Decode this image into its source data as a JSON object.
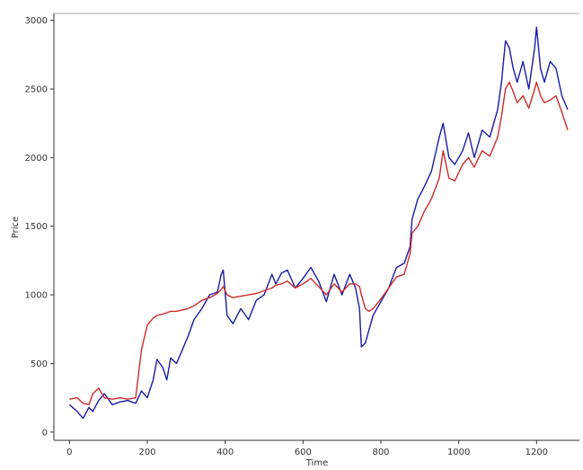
{
  "chart_data": {
    "type": "line",
    "title": "",
    "xlabel": "Time",
    "ylabel": "Price",
    "xlim": [
      -40,
      1310
    ],
    "ylim": [
      -60,
      3050
    ],
    "xticks": [
      0,
      200,
      400,
      600,
      800,
      1000,
      1200
    ],
    "yticks": [
      0,
      500,
      1000,
      1500,
      2000,
      2500,
      3000
    ],
    "grid": false,
    "legend": "none",
    "series": [
      {
        "color": "#1a1aa6",
        "x": [
          0,
          20,
          35,
          50,
          60,
          75,
          90,
          110,
          130,
          150,
          170,
          185,
          200,
          215,
          225,
          240,
          250,
          260,
          275,
          290,
          305,
          320,
          340,
          360,
          380,
          390,
          395,
          405,
          420,
          440,
          460,
          480,
          500,
          520,
          530,
          545,
          560,
          580,
          600,
          620,
          640,
          660,
          680,
          700,
          720,
          735,
          745,
          750,
          760,
          770,
          780,
          800,
          820,
          840,
          860,
          875,
          880,
          895,
          910,
          930,
          950,
          960,
          975,
          990,
          1010,
          1025,
          1040,
          1060,
          1080,
          1100,
          1110,
          1120,
          1130,
          1140,
          1150,
          1165,
          1180,
          1195,
          1200,
          1210,
          1220,
          1235,
          1250,
          1265,
          1280
        ],
        "values": [
          200,
          150,
          100,
          180,
          150,
          230,
          280,
          200,
          220,
          230,
          210,
          300,
          250,
          380,
          530,
          470,
          380,
          540,
          500,
          600,
          700,
          820,
          900,
          1000,
          1020,
          1150,
          1180,
          850,
          790,
          900,
          820,
          960,
          1000,
          1150,
          1080,
          1160,
          1180,
          1050,
          1120,
          1200,
          1100,
          950,
          1150,
          1000,
          1150,
          1050,
          900,
          620,
          650,
          750,
          850,
          950,
          1050,
          1200,
          1230,
          1350,
          1550,
          1700,
          1780,
          1900,
          2150,
          2250,
          2000,
          1950,
          2050,
          2180,
          2000,
          2200,
          2150,
          2350,
          2550,
          2850,
          2800,
          2650,
          2550,
          2700,
          2500,
          2800,
          2950,
          2650,
          2550,
          2700,
          2650,
          2450,
          2350
        ]
      },
      {
        "color": "#cc2b2b",
        "x": [
          0,
          20,
          35,
          50,
          60,
          75,
          90,
          110,
          130,
          150,
          170,
          185,
          200,
          215,
          225,
          240,
          250,
          260,
          275,
          290,
          305,
          320,
          340,
          360,
          380,
          390,
          395,
          405,
          420,
          440,
          460,
          480,
          500,
          520,
          530,
          545,
          560,
          580,
          600,
          620,
          640,
          660,
          680,
          700,
          720,
          735,
          745,
          750,
          760,
          770,
          780,
          800,
          820,
          840,
          860,
          875,
          880,
          895,
          910,
          930,
          950,
          960,
          975,
          990,
          1010,
          1025,
          1040,
          1060,
          1080,
          1100,
          1110,
          1120,
          1130,
          1140,
          1150,
          1165,
          1180,
          1195,
          1200,
          1210,
          1220,
          1235,
          1250,
          1265,
          1280
        ],
        "values": [
          240,
          250,
          210,
          200,
          280,
          320,
          250,
          240,
          250,
          240,
          250,
          600,
          780,
          830,
          850,
          860,
          870,
          880,
          880,
          890,
          900,
          920,
          960,
          980,
          1010,
          1040,
          1060,
          1000,
          980,
          990,
          1000,
          1010,
          1030,
          1050,
          1070,
          1080,
          1100,
          1050,
          1080,
          1120,
          1060,
          1000,
          1080,
          1020,
          1080,
          1080,
          1060,
          1000,
          900,
          880,
          900,
          970,
          1050,
          1130,
          1150,
          1300,
          1450,
          1500,
          1600,
          1700,
          1850,
          2050,
          1850,
          1830,
          1950,
          2000,
          1930,
          2050,
          2010,
          2150,
          2300,
          2500,
          2550,
          2480,
          2400,
          2450,
          2360,
          2500,
          2550,
          2450,
          2400,
          2420,
          2450,
          2330,
          2200
        ]
      }
    ]
  }
}
